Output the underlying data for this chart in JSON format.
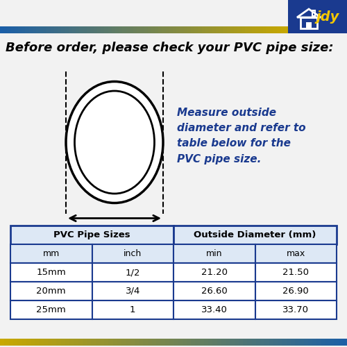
{
  "title": "Before order, please check your PVC pipe size:",
  "annotation_text": "Measure outside\ndiameter and refer to\ntable below for the\nPVC pipe size.",
  "annotation_color": "#1a3a8f",
  "table_headers_row1": [
    "PVC Pipe Sizes",
    "Outside Diameter (mm)"
  ],
  "table_headers_row2": [
    "mm",
    "inch",
    "min",
    "max"
  ],
  "table_data": [
    [
      "15mm",
      "1/2",
      "21.20",
      "21.50"
    ],
    [
      "20mm",
      "3/4",
      "26.60",
      "26.90"
    ],
    [
      "25mm",
      "1",
      "33.40",
      "33.70"
    ]
  ],
  "bg_color": "#f2f2f2",
  "logo_bg": "#1a3a8f",
  "logo_text": "jdy",
  "table_border_color": "#1a3a8f",
  "table_header_bg": "#dde8f5",
  "stripe_blue": "#1a5fa8",
  "stripe_gold": "#c8a800"
}
